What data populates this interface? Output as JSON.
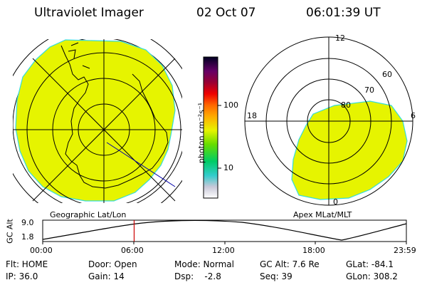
{
  "header": {
    "title": "Ultraviolet Imager",
    "date": "02 Oct 07",
    "time": "06:01:39 UT"
  },
  "geo_panel": {
    "label": "Geographic Lat/Lon"
  },
  "apex_panel": {
    "label": "Apex MLat/MLT",
    "mlt_labels": {
      "top": "12",
      "left": "18",
      "right": "6",
      "bottom": "0"
    },
    "lat_labels": [
      "60",
      "70",
      "80"
    ]
  },
  "colorbar": {
    "unit_label": "photon cm⁻²s⁻¹",
    "tick_labels": [
      "100",
      "10"
    ],
    "fill_color": "#e6f400"
  },
  "timeline": {
    "ylabel": "GC Alt",
    "y_ticks": [
      "9.0",
      "1.8"
    ],
    "x_ticks": [
      "00:00",
      "06:00",
      "12:00",
      "18:00",
      "23:59"
    ],
    "cursor_time_hours": 6.03,
    "cursor_color": "#cc0000"
  },
  "info": {
    "flt": "Flt: HOME",
    "ip": "IP: 36.0",
    "door": "Door: Open",
    "gain": "Gain: 14",
    "mode": "Mode: Normal",
    "dsp": "Dsp:    -2.8",
    "gcalt": "GC Alt: 7.6 Re",
    "seq": "Seq: 39",
    "glat": "GLat: -84.1",
    "glon": "GLon: 308.2"
  }
}
